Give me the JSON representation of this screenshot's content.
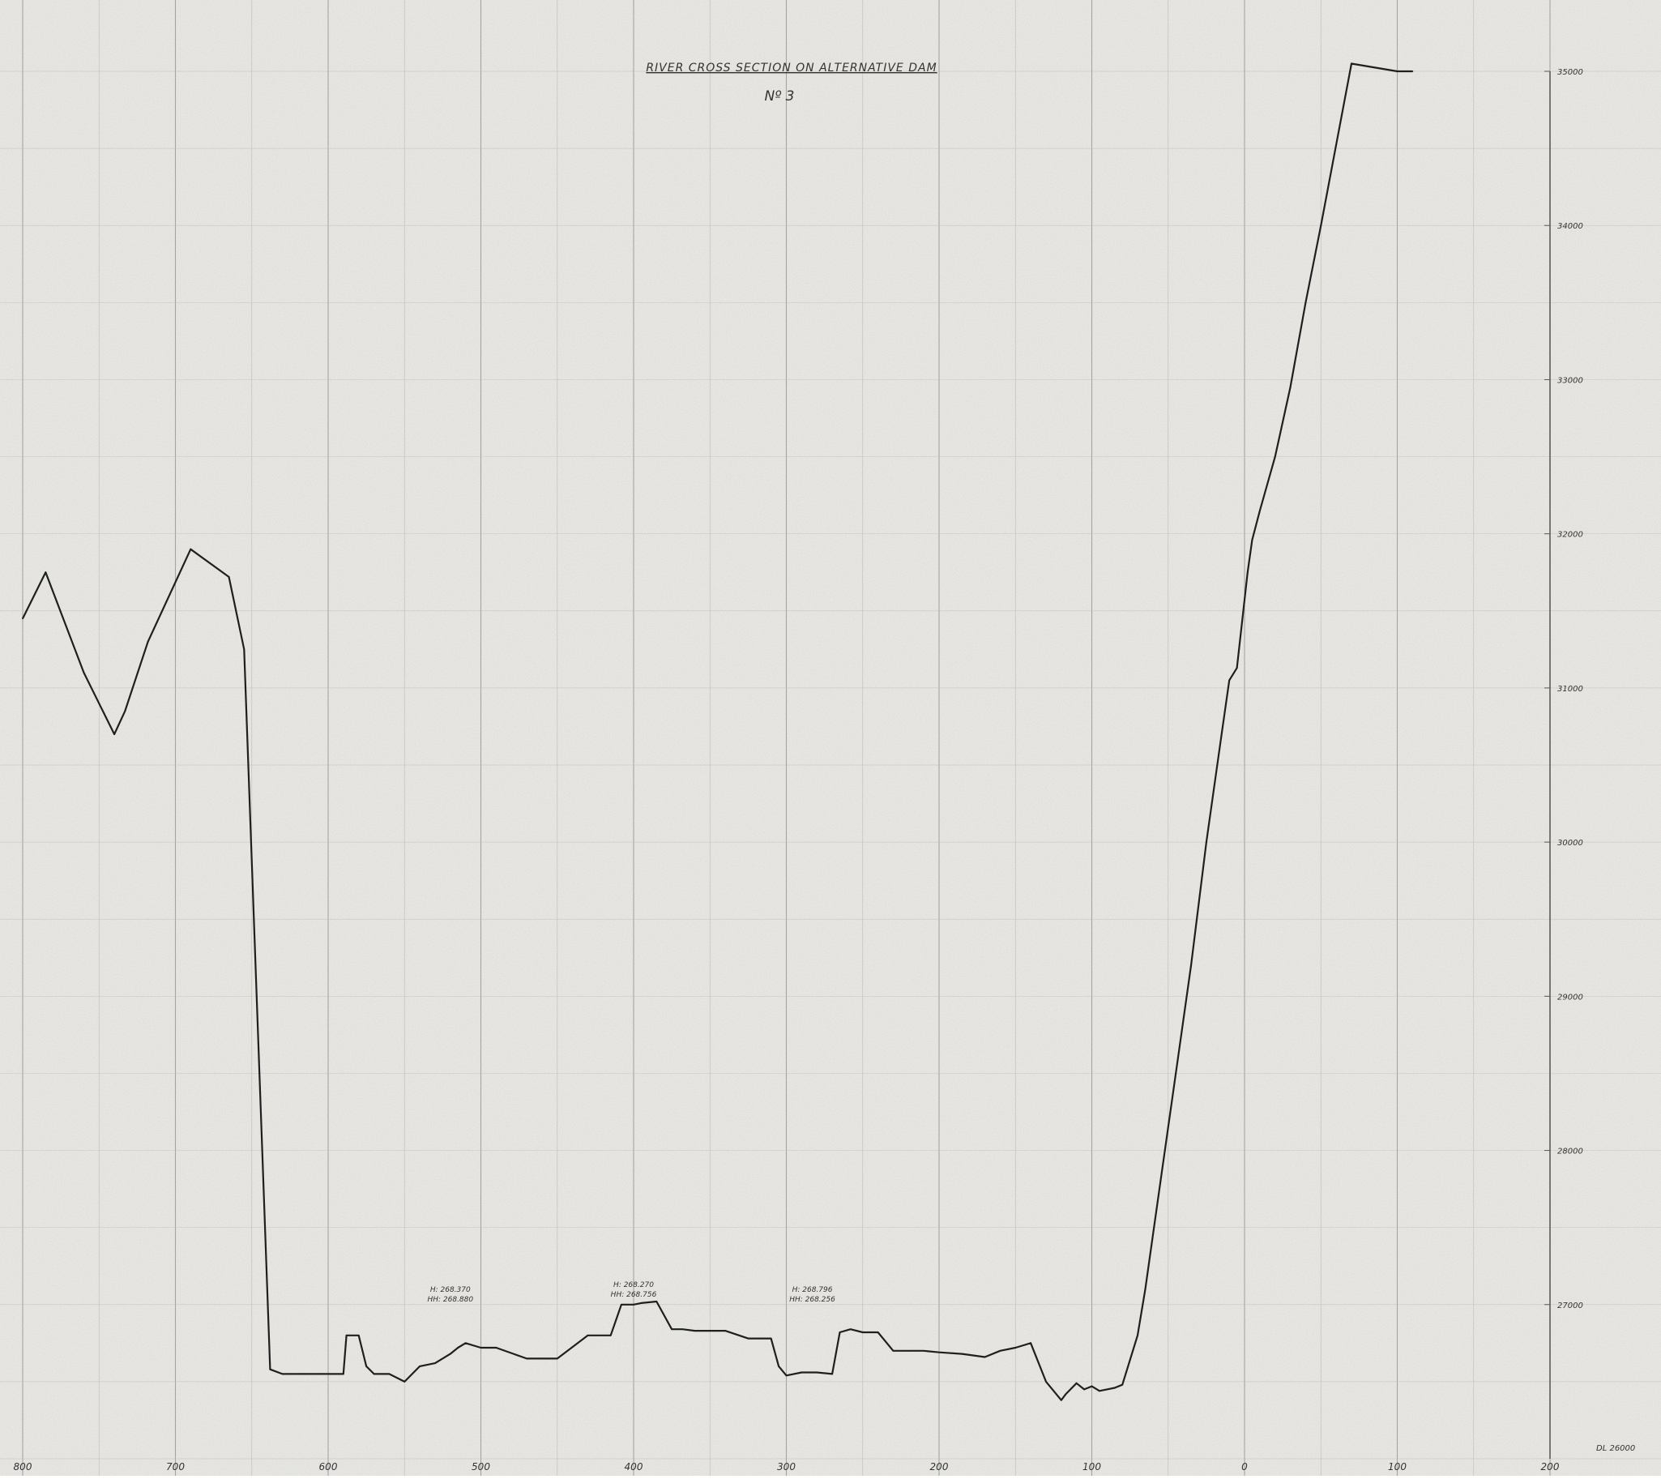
{
  "chart_data": {
    "type": "line",
    "title": "RIVER CROSS SECTION ON ALTERNATIVE DAM",
    "subtitle": "Nº 3",
    "xlabel": "",
    "ylabel": "",
    "x_ticks": [
      "800",
      "700",
      "600",
      "500",
      "400",
      "300",
      "200",
      "100",
      "0",
      "100",
      "200"
    ],
    "y_ticks": [
      "35000",
      "34000",
      "33000",
      "32000",
      "31000",
      "30000",
      "29000",
      "28000",
      "27000"
    ],
    "datum_label": "DL 26000",
    "xlim": [
      -800,
      200
    ],
    "ylim": [
      26000,
      35000
    ],
    "grid": true,
    "series": [
      {
        "x": [
          -800,
          -785,
          -760,
          -740,
          -733,
          -718,
          -690,
          -665,
          -655,
          -645,
          -638,
          -630,
          -618,
          -605,
          -590,
          -588,
          -580,
          -575,
          -570,
          -560,
          -550,
          -540,
          -530,
          -520,
          -515,
          -510,
          -500,
          -490,
          -470,
          -450,
          -430,
          -415,
          -408,
          -405,
          -400,
          -395,
          -385,
          -375,
          -368,
          -360,
          -350,
          -340,
          -325,
          -310,
          -305,
          -300,
          -290,
          -280,
          -270,
          -265,
          -258,
          -250,
          -240,
          -230,
          -220,
          -210,
          -200,
          -185,
          -170,
          -160,
          -150,
          -140,
          -130,
          -120,
          -117,
          -110,
          -105,
          -100,
          -95,
          -90,
          -85,
          -80,
          -70,
          -65,
          -55,
          -45,
          -35,
          -25,
          -15,
          -10,
          -5,
          2,
          5,
          10,
          20,
          30,
          40,
          50,
          70,
          100,
          110
        ],
        "y": [
          31450,
          31750,
          31100,
          30700,
          30850,
          31300,
          31900,
          31720,
          31250,
          28500,
          26580,
          26550,
          26550,
          26550,
          26550,
          26800,
          26800,
          26600,
          26550,
          26550,
          26500,
          26600,
          26620,
          26680,
          26720,
          26750,
          26720,
          26720,
          26650,
          26650,
          26800,
          26800,
          27000,
          27000,
          27000,
          27010,
          27020,
          26840,
          26840,
          26830,
          26830,
          26830,
          26780,
          26780,
          26600,
          26540,
          26560,
          26560,
          26550,
          26820,
          26840,
          26820,
          26820,
          26700,
          26700,
          26700,
          26690,
          26680,
          26660,
          26700,
          26720,
          26750,
          26500,
          26380,
          26420,
          26490,
          26450,
          26470,
          26440,
          26450,
          26460,
          26480,
          26800,
          27100,
          27800,
          28500,
          29200,
          30000,
          30700,
          31050,
          31130,
          31750,
          31960,
          32150,
          32500,
          32950,
          33500,
          34000,
          35050,
          35000,
          35000
        ]
      }
    ],
    "annotations": [
      {
        "line1": "H: 268.370",
        "line2": "HH: 268.880",
        "x": -520,
        "y": 27000
      },
      {
        "line1": "H: 268.270",
        "line2": "HH: 268.756",
        "x": -400,
        "y": 27030
      },
      {
        "line1": "H: 268.796",
        "line2": "HH: 268.256",
        "x": -283,
        "y": 27000
      }
    ]
  }
}
